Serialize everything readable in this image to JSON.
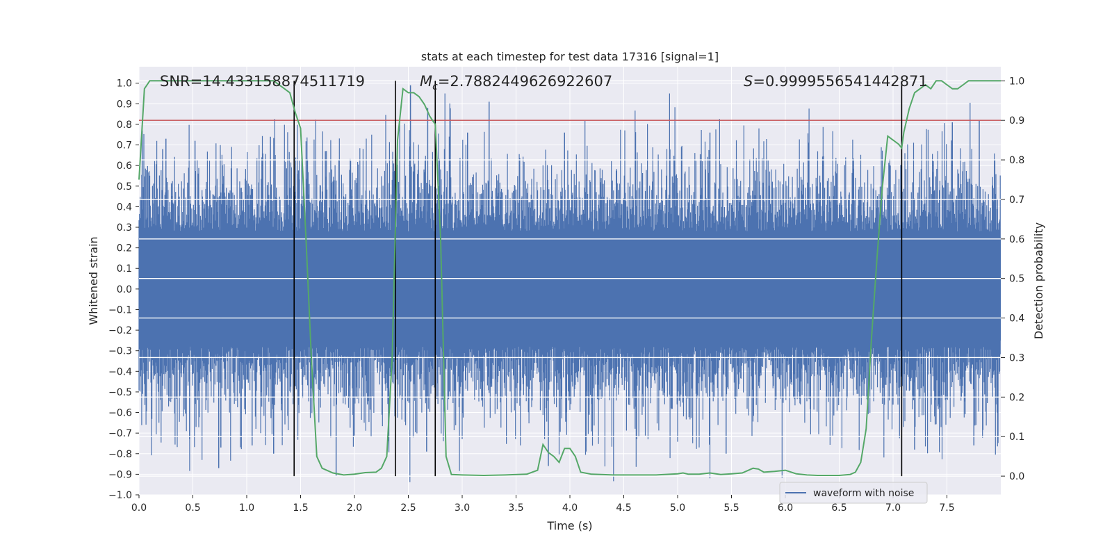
{
  "chart_data": {
    "type": "line",
    "title": "stats at each timestep for test data 17316 [signal=1]",
    "xlabel": "Time (s)",
    "ylabel": "Whitened strain",
    "y2label": "Detection probability",
    "xlim": [
      0.0,
      8.0
    ],
    "ylim": [
      -1.0,
      1.08
    ],
    "y2lim": [
      -0.0473,
      1.0357
    ],
    "x_ticks": [
      "0.0",
      "0.5",
      "1.0",
      "1.5",
      "2.0",
      "2.5",
      "3.0",
      "3.5",
      "4.0",
      "4.5",
      "5.0",
      "5.5",
      "6.0",
      "6.5",
      "7.0",
      "7.5"
    ],
    "y_ticks": [
      "1.0",
      "0.9",
      "0.8",
      "0.7",
      "0.6",
      "0.5",
      "0.4",
      "0.3",
      "0.2",
      "0.1",
      "0.0",
      "−0.1",
      "−0.2",
      "−0.3",
      "−0.4",
      "−0.5",
      "−0.6",
      "−0.7",
      "−0.8",
      "−0.9",
      "−1.0"
    ],
    "y2_ticks": [
      "1.0",
      "0.9",
      "0.8",
      "0.7",
      "0.6",
      "0.5",
      "0.4",
      "0.3",
      "0.2",
      "0.1",
      "0.0"
    ],
    "grid": true,
    "legend_position": "lower-right",
    "annotations": {
      "snr": "SNR=14.433158874511719",
      "mc_symbol": "M",
      "mc_sub": "c",
      "mc_value": "=2.7882449626922607",
      "s_symbol": "S",
      "s_value": "=0.9999556541442871"
    },
    "threshold": 0.9,
    "vertical_lines": [
      1.44,
      2.38,
      2.75,
      7.08
    ],
    "series": [
      {
        "name": "waveform with noise",
        "color": "#4c72b0",
        "description": "dense whitened noise, sample amplitudes approx gaussian sigma 0.2",
        "peaks": [
          {
            "x": 0.03,
            "y": 0.77
          },
          {
            "x": 0.22,
            "y": 0.68
          },
          {
            "x": 0.25,
            "y": 0.73
          },
          {
            "x": 0.52,
            "y": 0.72
          },
          {
            "x": 1.22,
            "y": 0.74
          },
          {
            "x": 1.47,
            "y": 0.56
          },
          {
            "x": 1.73,
            "y": 0.67
          },
          {
            "x": 2.36,
            "y": 0.57
          },
          {
            "x": 2.52,
            "y": 0.99
          },
          {
            "x": 2.68,
            "y": 0.88
          },
          {
            "x": 3.05,
            "y": 0.76
          },
          {
            "x": 3.25,
            "y": 0.91
          },
          {
            "x": 3.95,
            "y": 0.76
          },
          {
            "x": 5.3,
            "y": 0.76
          },
          {
            "x": 7.55,
            "y": 0.81
          },
          {
            "x": 7.8,
            "y": 0.82
          }
        ],
        "troughs": [
          {
            "x": 0.47,
            "y": -0.73
          },
          {
            "x": 0.74,
            "y": -0.87
          },
          {
            "x": 0.76,
            "y": -0.77
          },
          {
            "x": 1.05,
            "y": -0.76
          },
          {
            "x": 1.25,
            "y": -0.8
          },
          {
            "x": 1.83,
            "y": -0.91
          },
          {
            "x": 2.67,
            "y": -0.79
          },
          {
            "x": 3.8,
            "y": -0.86
          },
          {
            "x": 4.15,
            "y": -0.79
          },
          {
            "x": 5.45,
            "y": -0.8
          },
          {
            "x": 7.2,
            "y": -0.78
          },
          {
            "x": 7.75,
            "y": -0.76
          }
        ]
      },
      {
        "name": "",
        "color": "#55a868",
        "x": [
          0.0,
          0.05,
          0.1,
          0.15,
          0.2,
          0.3,
          0.4,
          0.5,
          0.6,
          0.7,
          0.8,
          0.9,
          1.0,
          1.1,
          1.2,
          1.25,
          1.3,
          1.35,
          1.4,
          1.45,
          1.5,
          1.55,
          1.6,
          1.65,
          1.7,
          1.8,
          1.9,
          2.0,
          2.1,
          2.2,
          2.25,
          2.3,
          2.35,
          2.4,
          2.45,
          2.5,
          2.55,
          2.6,
          2.65,
          2.7,
          2.75,
          2.8,
          2.85,
          2.9,
          3.0,
          3.2,
          3.4,
          3.6,
          3.7,
          3.75,
          3.8,
          3.85,
          3.9,
          3.95,
          4.0,
          4.05,
          4.1,
          4.2,
          4.4,
          4.6,
          4.8,
          5.0,
          5.05,
          5.1,
          5.2,
          5.3,
          5.4,
          5.5,
          5.6,
          5.7,
          5.75,
          5.8,
          5.9,
          6.0,
          6.1,
          6.2,
          6.3,
          6.4,
          6.5,
          6.6,
          6.65,
          6.7,
          6.75,
          6.8,
          6.85,
          6.9,
          6.95,
          7.0,
          7.05,
          7.08,
          7.1,
          7.15,
          7.2,
          7.3,
          7.35,
          7.4,
          7.45,
          7.5,
          7.55,
          7.6,
          7.65,
          7.7,
          7.8,
          7.9,
          8.0
        ],
        "y": [
          0.75,
          0.98,
          1.0,
          1.0,
          1.0,
          1.0,
          1.0,
          1.0,
          1.0,
          1.0,
          1.0,
          1.0,
          1.0,
          1.0,
          1.0,
          1.0,
          0.99,
          0.98,
          0.97,
          0.92,
          0.88,
          0.6,
          0.3,
          0.05,
          0.02,
          0.008,
          0.003,
          0.005,
          0.009,
          0.01,
          0.02,
          0.05,
          0.3,
          0.85,
          0.98,
          0.97,
          0.97,
          0.96,
          0.94,
          0.91,
          0.89,
          0.6,
          0.05,
          0.004,
          0.003,
          0.002,
          0.003,
          0.005,
          0.015,
          0.08,
          0.06,
          0.05,
          0.035,
          0.07,
          0.07,
          0.05,
          0.01,
          0.005,
          0.003,
          0.003,
          0.003,
          0.006,
          0.008,
          0.005,
          0.005,
          0.008,
          0.004,
          0.006,
          0.008,
          0.02,
          0.018,
          0.01,
          0.012,
          0.015,
          0.006,
          0.003,
          0.002,
          0.002,
          0.002,
          0.004,
          0.01,
          0.035,
          0.12,
          0.35,
          0.55,
          0.73,
          0.86,
          0.85,
          0.84,
          0.83,
          0.87,
          0.93,
          0.97,
          0.99,
          0.98,
          1.0,
          1.0,
          0.99,
          0.98,
          0.98,
          0.99,
          1.0,
          1.0,
          1.0,
          1.0
        ]
      }
    ]
  }
}
